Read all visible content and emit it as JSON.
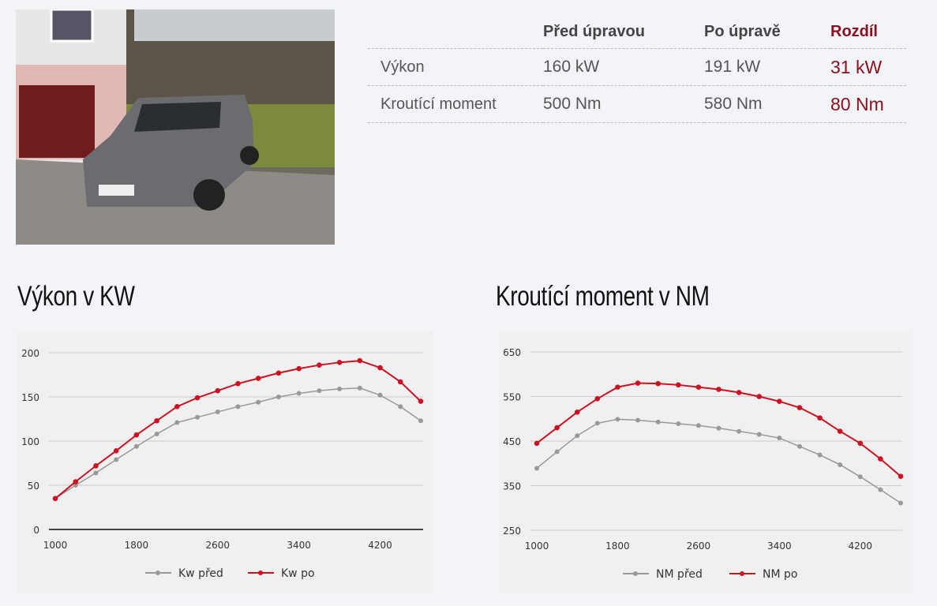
{
  "spec_table": {
    "headers": [
      "",
      "Před úpravou",
      "Po úpravě",
      "Rozdíl"
    ],
    "rows": [
      {
        "label": "Výkon",
        "before": "160 kW",
        "after": "191 kW",
        "diff": "31 kW"
      },
      {
        "label": "Kroutící moment",
        "before": "500 Nm",
        "after": "580 Nm",
        "diff": "80 Nm"
      }
    ]
  },
  "colors": {
    "accent": "#8b1020",
    "series_before": "#999999",
    "series_after": "#cc1122"
  },
  "chart_data": [
    {
      "type": "line",
      "title": "Výkon v KW",
      "x": [
        1000,
        1200,
        1400,
        1600,
        1800,
        2000,
        2200,
        2400,
        2600,
        2800,
        3000,
        3200,
        3400,
        3600,
        3800,
        4000,
        4200,
        4400,
        4600
      ],
      "xticks": [
        1000,
        1800,
        2600,
        3400,
        4200
      ],
      "yticks": [
        0,
        50,
        100,
        150,
        200
      ],
      "ylim": [
        0,
        200
      ],
      "grid": true,
      "legend": "bottom",
      "series": [
        {
          "name": "Kw před",
          "color": "#999999",
          "values": [
            35,
            50,
            64,
            79,
            94,
            108,
            121,
            127,
            133,
            139,
            144,
            150,
            154,
            157,
            159,
            160,
            152,
            139,
            123
          ]
        },
        {
          "name": "Kw po",
          "color": "#cc1122",
          "values": [
            35,
            54,
            72,
            89,
            107,
            123,
            139,
            149,
            157,
            165,
            171,
            177,
            182,
            186,
            189,
            191,
            183,
            167,
            145
          ]
        }
      ]
    },
    {
      "type": "line",
      "title": "Kroutící moment v NM",
      "x": [
        1000,
        1200,
        1400,
        1600,
        1800,
        2000,
        2200,
        2400,
        2600,
        2800,
        3000,
        3200,
        3400,
        3600,
        3800,
        4000,
        4200,
        4400,
        4600
      ],
      "xticks": [
        1000,
        1800,
        2600,
        3400,
        4200
      ],
      "yticks": [
        250,
        350,
        450,
        550,
        650
      ],
      "ylim": [
        250,
        650
      ],
      "grid": true,
      "legend": "bottom",
      "series": [
        {
          "name": "NM před",
          "color": "#999999",
          "values": [
            389,
            426,
            462,
            490,
            499,
            497,
            493,
            489,
            485,
            479,
            472,
            465,
            457,
            438,
            419,
            397,
            370,
            341,
            311
          ]
        },
        {
          "name": "NM po",
          "color": "#cc1122",
          "values": [
            445,
            480,
            515,
            545,
            571,
            580,
            579,
            576,
            571,
            566,
            559,
            550,
            539,
            525,
            502,
            472,
            445,
            410,
            371
          ]
        }
      ]
    }
  ]
}
